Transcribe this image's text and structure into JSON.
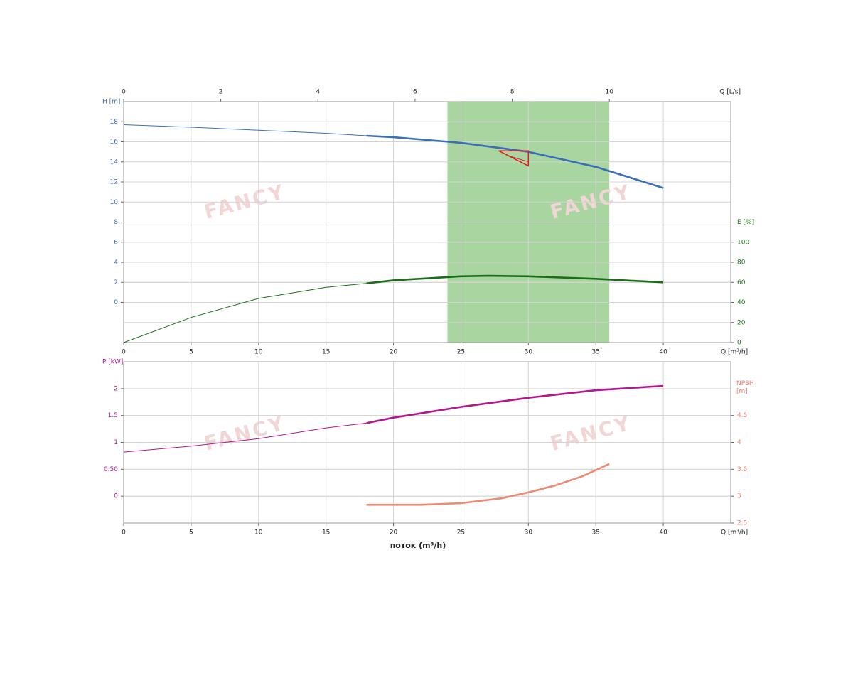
{
  "chart_data": [
    {
      "type": "line",
      "xlim": [
        0,
        45
      ],
      "xticks": [
        0,
        5,
        10,
        15,
        20,
        25,
        30,
        35,
        40
      ],
      "xlabel": "Q [m³/h]",
      "x2lim": [
        0,
        12.5
      ],
      "x2ticks": [
        0,
        2,
        4,
        6,
        8,
        10
      ],
      "x2label": "Q [L/s]",
      "ylim": [
        -4,
        20
      ],
      "yticks": [
        0,
        2,
        4,
        6,
        8,
        10,
        12,
        14,
        16,
        18
      ],
      "ylabel": "H [m]",
      "ycolor": "#3a6fb8",
      "y2lim": [
        0,
        240
      ],
      "y2ticks": [
        0,
        20,
        40,
        60,
        80,
        100
      ],
      "y2label": "E [%]",
      "y2color": "#1a7a1a",
      "grid": true,
      "band": {
        "range": [
          24,
          36
        ],
        "color": "#a9d6a0"
      },
      "bold_range": [
        18,
        40
      ],
      "series": [
        {
          "color": "#3a6fb8",
          "axis": "y",
          "x": [
            0,
            5,
            10,
            15,
            18,
            20,
            25,
            30,
            35,
            40
          ],
          "values": [
            17.7,
            17.45,
            17.15,
            16.85,
            16.6,
            16.45,
            15.9,
            15.0,
            13.5,
            11.4
          ]
        },
        {
          "color": "#1a6e1a",
          "axis": "y2",
          "x": [
            0,
            5,
            10,
            15,
            18,
            20,
            25,
            27,
            30,
            35,
            40
          ],
          "values": [
            0,
            25,
            44,
            55,
            59,
            62,
            66,
            66.5,
            66,
            63.5,
            60
          ]
        }
      ],
      "tolerance_marker": {
        "x": [
          27.8,
          30,
          30
        ],
        "y": [
          15.1,
          15.1,
          13.6
        ],
        "color": "#d92020"
      },
      "watermark": "FANCY"
    },
    {
      "type": "line",
      "xlim": [
        0,
        45
      ],
      "xticks": [
        0,
        5,
        10,
        15,
        20,
        25,
        30,
        35,
        40
      ],
      "xlabel": "Q [m³/h]",
      "xtitle": "поток (m³/h)",
      "ylim": [
        -0.5,
        2.5
      ],
      "yticks": [
        0,
        {
          "value": 0.5,
          "label": "0.50"
        },
        1,
        1.5,
        2
      ],
      "ylabel": "P [kW]",
      "ycolor": "#b0188f",
      "y2lim": [
        2.5,
        5.5
      ],
      "y2ticks": [
        2.5,
        3,
        3.5,
        4,
        4.5
      ],
      "y2label": "NPSH [m]",
      "y2color": "#e8806a",
      "grid": true,
      "bold_range": [
        18,
        40
      ],
      "series": [
        {
          "color": "#b0188f",
          "axis": "y",
          "x": [
            0,
            5,
            10,
            15,
            18,
            20,
            25,
            30,
            35,
            40
          ],
          "values": [
            0.82,
            0.93,
            1.07,
            1.27,
            1.36,
            1.46,
            1.66,
            1.83,
            1.97,
            2.05
          ]
        },
        {
          "color": "#ef8a72",
          "axis": "y2",
          "x": [
            18,
            20,
            22,
            25,
            28,
            30,
            32,
            34,
            36
          ],
          "values": [
            2.84,
            2.84,
            2.84,
            2.87,
            2.96,
            3.07,
            3.2,
            3.37,
            3.6
          ]
        }
      ],
      "watermark": "FANCY"
    }
  ]
}
